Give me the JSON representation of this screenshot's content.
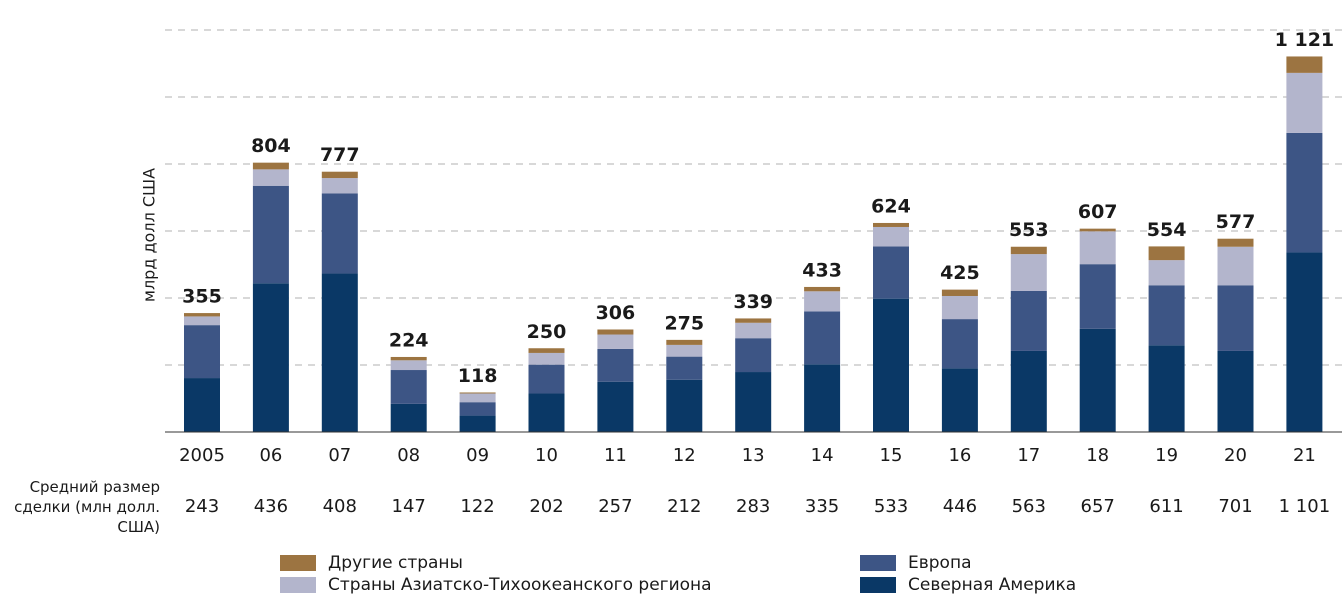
{
  "chart_data": {
    "type": "stacked_bar",
    "y_axis_label": "млрд долл США",
    "categories": [
      "2005",
      "06",
      "07",
      "08",
      "09",
      "10",
      "11",
      "12",
      "13",
      "14",
      "15",
      "16",
      "17",
      "18",
      "19",
      "20",
      "21"
    ],
    "series": [
      {
        "name": "Северная Америка",
        "color": "#0a3866",
        "values": [
          161,
          444,
          473,
          84,
          49,
          115,
          150,
          156,
          179,
          202,
          398,
          190,
          242,
          308,
          259,
          242,
          536
        ]
      },
      {
        "name": "Европа",
        "color": "#3d5585",
        "values": [
          158,
          291,
          239,
          101,
          40,
          86,
          98,
          69,
          101,
          158,
          156,
          147,
          179,
          193,
          179,
          196,
          357
        ]
      },
      {
        "name": "Страны Азиатско-Тихоокеанского региона",
        "color": "#b3b5cc",
        "values": [
          26,
          49,
          46,
          29,
          26,
          35,
          43,
          35,
          46,
          60,
          58,
          69,
          110,
          98,
          75,
          115,
          179
        ]
      },
      {
        "name": "Другие страны",
        "color": "#9c7441",
        "values": [
          10,
          20,
          19,
          10,
          3,
          14,
          15,
          15,
          13,
          13,
          12,
          19,
          22,
          8,
          41,
          24,
          49
        ]
      }
    ],
    "totals": [
      355,
      804,
      777,
      224,
      118,
      250,
      306,
      275,
      339,
      433,
      624,
      425,
      553,
      607,
      554,
      577,
      1121
    ],
    "total_labels": [
      "355",
      "804",
      "777",
      "224",
      "118",
      "250",
      "306",
      "275",
      "339",
      "433",
      "624",
      "425",
      "553",
      "607",
      "554",
      "577",
      "1 121"
    ],
    "deal_size": {
      "label": "Средний размер сделки (млн долл. США)",
      "values": [
        243,
        436,
        408,
        147,
        122,
        202,
        257,
        212,
        283,
        335,
        533,
        446,
        563,
        657,
        611,
        701,
        1101
      ],
      "value_labels": [
        "243",
        "436",
        "408",
        "147",
        "122",
        "202",
        "257",
        "212",
        "283",
        "335",
        "533",
        "446",
        "563",
        "657",
        "611",
        "701",
        "1 101"
      ]
    },
    "ylim": [
      0,
      1200
    ],
    "yticks": [
      200,
      400,
      600,
      800,
      1000,
      1200
    ],
    "grid": true
  }
}
